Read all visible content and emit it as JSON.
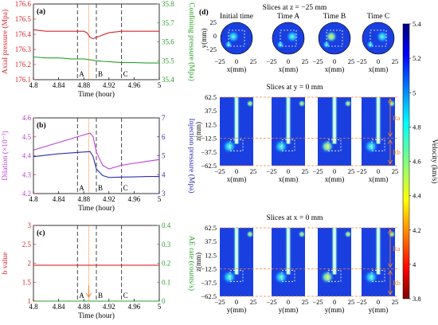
{
  "colors": {
    "red": "#d9262b",
    "green": "#2ca02c",
    "magenta": "#c03fd6",
    "blue": "#2b2fb5",
    "event_line": "#444444",
    "arrow": "#f2822e"
  },
  "event_markers": {
    "times": [
      4.87,
      4.9,
      4.94
    ],
    "labels": [
      "A",
      "B",
      "C"
    ]
  },
  "chart_data": [
    {
      "id": "a",
      "type": "line",
      "panel_label": "(a)",
      "xlabel": "Time (hour)",
      "xlim": [
        4.8,
        5.0
      ],
      "xticks": [
        "4.8",
        "4.84",
        "4.88",
        "4.92",
        "4.96",
        "5"
      ],
      "ylabel": "Axial pressure (Mpa)",
      "ylim": [
        176.1,
        176.6
      ],
      "yticks": [
        "176.1",
        "176.2",
        "176.3",
        "176.4",
        "176.5",
        "176.6"
      ],
      "y2label": "Confining pressure (Mpa)",
      "y2lim": [
        35.4,
        35.8
      ],
      "y2ticks": [
        "35.4",
        "35.5",
        "35.6",
        "35.7",
        "35.8"
      ],
      "series": [
        {
          "axis": "left",
          "color": "#d9262b",
          "x": [
            4.8,
            4.82,
            4.84,
            4.86,
            4.87,
            4.88,
            4.885,
            4.89,
            4.895,
            4.9,
            4.92,
            4.94,
            4.96,
            4.98,
            5.0
          ],
          "y": [
            176.43,
            176.42,
            176.42,
            176.42,
            176.42,
            176.42,
            176.41,
            176.38,
            176.37,
            176.38,
            176.41,
            176.42,
            176.42,
            176.42,
            176.42
          ]
        },
        {
          "axis": "right",
          "color": "#2ca02c",
          "x": [
            4.8,
            4.82,
            4.84,
            4.86,
            4.88,
            4.89,
            4.9,
            4.91,
            4.92,
            4.94,
            4.96,
            4.98,
            5.0
          ],
          "y": [
            35.52,
            35.515,
            35.515,
            35.51,
            35.51,
            35.505,
            35.5,
            35.497,
            35.495,
            35.49,
            35.49,
            35.488,
            35.488
          ]
        }
      ]
    },
    {
      "id": "b",
      "type": "line",
      "panel_label": "(b)",
      "xlabel": "Time (hour)",
      "xlim": [
        4.8,
        5.0
      ],
      "xticks": [
        "4.8",
        "4.84",
        "4.88",
        "4.92",
        "4.96",
        "5"
      ],
      "ylabel": "Dilation (×10⁻³)",
      "ylim": [
        4.2,
        4.6
      ],
      "yticks": [
        "4.2",
        "4.3",
        "4.4",
        "4.5",
        "4.6"
      ],
      "y2label": "Injection pressure (Mpa)",
      "y2lim": [
        3,
        7
      ],
      "y2ticks": [
        "3",
        "4",
        "5",
        "6",
        "7"
      ],
      "series": [
        {
          "axis": "left",
          "color": "#c03fd6",
          "x": [
            4.8,
            4.82,
            4.84,
            4.86,
            4.88,
            4.89,
            4.895,
            4.9,
            4.91,
            4.92,
            4.94,
            4.96,
            4.98,
            5.0
          ],
          "y": [
            4.43,
            4.45,
            4.47,
            4.49,
            4.51,
            4.52,
            4.5,
            4.42,
            4.35,
            4.33,
            4.35,
            4.36,
            4.37,
            4.38
          ]
        },
        {
          "axis": "right",
          "color": "#2b2fb5",
          "x": [
            4.8,
            4.82,
            4.84,
            4.86,
            4.88,
            4.89,
            4.895,
            4.9,
            4.91,
            4.92,
            4.94,
            4.96,
            4.98,
            5.0
          ],
          "y": [
            4.95,
            5.03,
            5.1,
            5.15,
            5.2,
            5.22,
            4.95,
            4.3,
            3.95,
            3.85,
            3.87,
            3.88,
            3.9,
            3.9
          ]
        }
      ]
    },
    {
      "id": "c",
      "type": "line",
      "panel_label": "(c)",
      "xlabel": "Time (hour)",
      "xlim": [
        4.8,
        5.0
      ],
      "xticks": [
        "4.8",
        "4.84",
        "4.88",
        "4.92",
        "4.96",
        "5"
      ],
      "ylabel": "b value",
      "ylim": [
        1,
        3
      ],
      "yticks": [
        "1",
        "1.5",
        "2",
        "2.5",
        "3"
      ],
      "y2label": "AE rate (counts/s)",
      "y2lim": [
        0,
        0.4
      ],
      "y2ticks": [
        "0",
        "0.1",
        "0.2",
        "0.3",
        "0.4"
      ],
      "series": [
        {
          "axis": "left",
          "color": "#d9262b",
          "x": [
            4.8,
            5.0
          ],
          "y": [
            1.95,
            1.95
          ]
        },
        {
          "axis": "right",
          "color": "#2ca02c",
          "x": [
            4.8,
            5.0
          ],
          "y": [
            0.0,
            0.0
          ]
        }
      ]
    },
    {
      "id": "d",
      "type": "heatmap",
      "panel_label": "(d)",
      "columns": [
        "Initial time",
        "Time A",
        "Time B",
        "Time C"
      ],
      "colorbar": {
        "label": "Velocity (km/s)",
        "range": [
          3.8,
          5.4
        ],
        "ticks": [
          "3.8",
          "4",
          "4.2",
          "4.4",
          "4.6",
          "4.8",
          "5",
          "5.2",
          "5.4"
        ],
        "colormap": "jet"
      },
      "rows": [
        {
          "title": "Slices at z = −25 mm",
          "xlabel": "x(mm)",
          "ylabel": "y(mm)",
          "xticks": [
            "−25",
            "0",
            "25"
          ],
          "yticks": [
            "25",
            "0",
            "−25"
          ]
        },
        {
          "title": "Slices at y = 0 mm",
          "xlabel": "x(mm)",
          "ylabel": "z(mm)",
          "xticks": [
            "−25",
            "0",
            "25"
          ],
          "yticks": [
            "62.5",
            "37.5",
            "12.5",
            "−12.5",
            "−37.5",
            "−62.5"
          ],
          "zones": [
            "Ra",
            "Rb"
          ]
        },
        {
          "title": "Slices at x = 0 mm",
          "xlabel": "y(mm)",
          "ylabel": "z(mm)",
          "xticks": [
            "−25",
            "0",
            "25"
          ],
          "yticks": [
            "62.5",
            "37.5",
            "12.5",
            "−12.5",
            "−37.5",
            "−62.5"
          ],
          "zones": [
            "Ra",
            "Rb"
          ]
        }
      ]
    }
  ]
}
